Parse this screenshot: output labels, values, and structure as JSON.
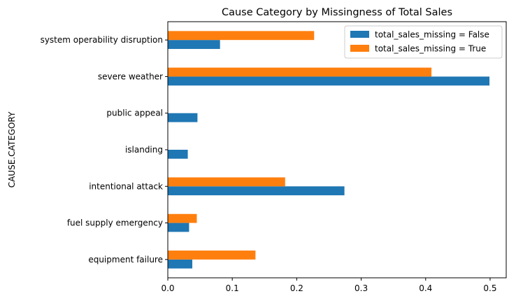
{
  "chart_data": {
    "type": "bar",
    "orientation": "horizontal",
    "title": "Cause Category by Missingness of Total Sales",
    "xlabel": "",
    "ylabel": "CAUSE.CATEGORY",
    "categories": [
      "equipment failure",
      "fuel supply emergency",
      "intentional attack",
      "islanding",
      "public appeal",
      "severe weather",
      "system operability disruption"
    ],
    "series": [
      {
        "name": "total_sales_missing = False",
        "color": "#1f77b4",
        "values": [
          0.038,
          0.033,
          0.274,
          0.031,
          0.046,
          0.499,
          0.081
        ]
      },
      {
        "name": "total_sales_missing = True",
        "color": "#ff7f0e",
        "values": [
          0.136,
          0.045,
          0.182,
          0.0,
          0.0,
          0.409,
          0.227
        ]
      }
    ],
    "xlim": [
      0,
      0.525
    ],
    "xticks": [
      0,
      0.1,
      0.2,
      0.3,
      0.4,
      0.5
    ],
    "xtick_labels": [
      "0.0",
      "0.1",
      "0.2",
      "0.3",
      "0.4",
      "0.5"
    ],
    "grid": false,
    "legend_position": "top-right"
  }
}
